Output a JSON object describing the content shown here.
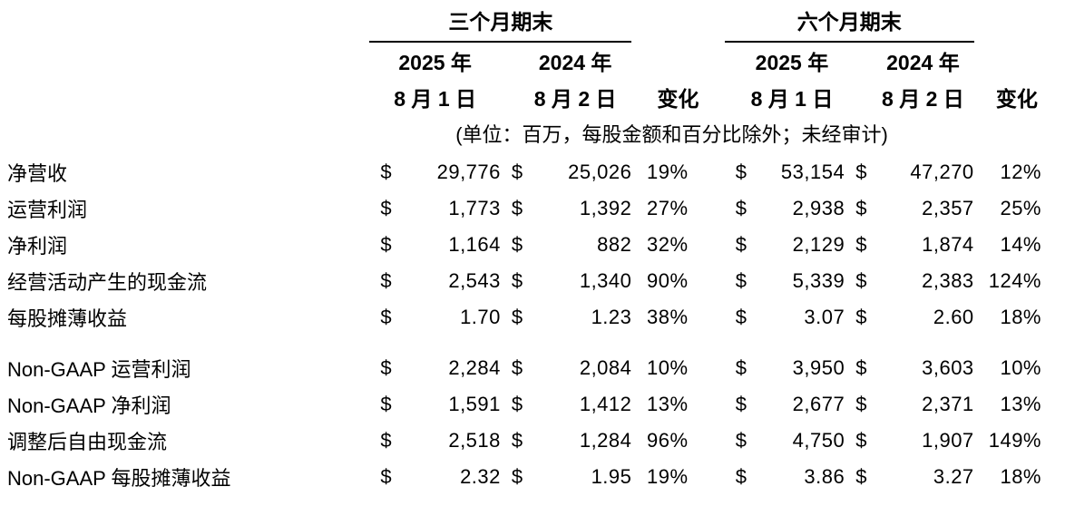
{
  "table": {
    "currency": "$",
    "unit_note": "(单位：百万，每股金额和百分比除外；未经审计)",
    "three_month": {
      "title": "三个月期末",
      "col1_year": "2025 年",
      "col1_date": "8 月 1 日",
      "col2_year": "2024 年",
      "col2_date": "8 月 2 日",
      "change_label": "变化"
    },
    "six_month": {
      "title": "六个月期末",
      "col1_year": "2025 年",
      "col1_date": "8 月 1 日",
      "col2_year": "2024 年",
      "col2_date": "8 月 2 日",
      "change_label": "变化"
    },
    "gaap_rows": [
      {
        "label": "净营收",
        "q_2025": "29,776",
        "q_2024": "25,026",
        "q_change": "19%",
        "h_2025": "53,154",
        "h_2024": "47,270",
        "h_change": "12%"
      },
      {
        "label": "运营利润",
        "q_2025": "1,773",
        "q_2024": "1,392",
        "q_change": "27%",
        "h_2025": "2,938",
        "h_2024": "2,357",
        "h_change": "25%"
      },
      {
        "label": "净利润",
        "q_2025": "1,164",
        "q_2024": "882",
        "q_change": "32%",
        "h_2025": "2,129",
        "h_2024": "1,874",
        "h_change": "14%"
      },
      {
        "label": "经营活动产生的现金流",
        "q_2025": "2,543",
        "q_2024": "1,340",
        "q_change": "90%",
        "h_2025": "5,339",
        "h_2024": "2,383",
        "h_change": "124%"
      },
      {
        "label": "每股摊薄收益",
        "q_2025": "1.70",
        "q_2024": "1.23",
        "q_change": "38%",
        "h_2025": "3.07",
        "h_2024": "2.60",
        "h_change": "18%"
      }
    ],
    "non_gaap_rows": [
      {
        "label": "Non-GAAP 运营利润",
        "q_2025": "2,284",
        "q_2024": "2,084",
        "q_change": "10%",
        "h_2025": "3,950",
        "h_2024": "3,603",
        "h_change": "10%"
      },
      {
        "label": "Non-GAAP 净利润",
        "q_2025": "1,591",
        "q_2024": "1,412",
        "q_change": "13%",
        "h_2025": "2,677",
        "h_2024": "2,371",
        "h_change": "13%"
      },
      {
        "label": "调整后自由现金流",
        "q_2025": "2,518",
        "q_2024": "1,284",
        "q_change": "96%",
        "h_2025": "4,750",
        "h_2024": "1,907",
        "h_change": "149%"
      },
      {
        "label": "Non-GAAP 每股摊薄收益",
        "q_2025": "2.32",
        "q_2024": "1.95",
        "q_change": "19%",
        "h_2025": "3.86",
        "h_2024": "3.27",
        "h_change": "18%"
      }
    ]
  },
  "colors": {
    "text": "#000000",
    "background": "#ffffff",
    "rule": "#000000"
  }
}
